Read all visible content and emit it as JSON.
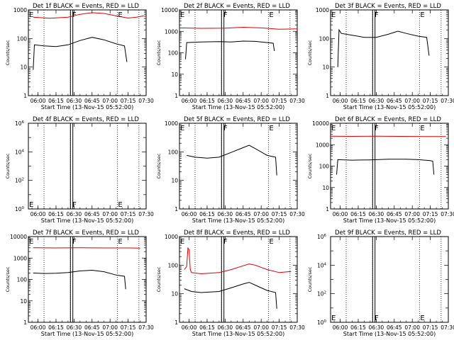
{
  "figure": {
    "background": "#ffffff",
    "colors": {
      "events": "#000000",
      "lld": "#dd0000",
      "frame": "#000000"
    }
  },
  "chart_data": [
    {
      "type": "line",
      "title": "Det 1f BLACK = Events, RED = LLD",
      "xlabel": "Start Time (13-Nov-15 05:52:00)",
      "ylabel": "Counts/sec",
      "ylim": [
        1,
        1000
      ],
      "log_y": true,
      "yticks": [
        {
          "v": 1,
          "label": "1"
        },
        {
          "v": 10,
          "label": "10"
        },
        {
          "v": 100,
          "label": "100"
        },
        {
          "v": 1000,
          "label": "1000"
        }
      ],
      "xlim": [
        "05:52",
        "07:30"
      ],
      "xticks": [
        "06:00",
        "06:15",
        "06:30",
        "06:45",
        "07:00",
        "07:15",
        "07:30"
      ],
      "vlines_dotted": [
        "06:05",
        "06:27",
        "07:06",
        "07:24"
      ],
      "vlines_solid": [
        "06:27",
        "06:29"
      ],
      "markers": [
        {
          "text": "E",
          "x": "05:52"
        },
        {
          "text": "F",
          "x": "06:28"
        },
        {
          "text": "E",
          "x": "07:06"
        }
      ],
      "marker_pos": "top",
      "series": [
        {
          "name": "LLD",
          "color": "#dd0000",
          "x": [
            "05:56",
            "06:10",
            "06:25",
            "06:35",
            "06:45",
            "06:55",
            "07:05",
            "07:15",
            "07:22",
            "07:28"
          ],
          "values": [
            560,
            510,
            560,
            700,
            800,
            750,
            620,
            520,
            560,
            620
          ]
        },
        {
          "name": "Events",
          "color": "#000000",
          "x": [
            "05:56",
            "05:57",
            "06:05",
            "06:15",
            "06:25",
            "06:35",
            "06:45",
            "06:55",
            "07:05",
            "07:12",
            "07:14"
          ],
          "values": [
            8,
            60,
            55,
            52,
            60,
            85,
            110,
            90,
            65,
            55,
            15
          ]
        }
      ]
    },
    {
      "type": "line",
      "title": "Det 2f BLACK = Events, RED = LLD",
      "xlabel": "Start Time (13-Nov-15 05:52:00)",
      "ylabel": "Counts/sec",
      "ylim": [
        1,
        10000
      ],
      "log_y": true,
      "yticks": [
        {
          "v": 1,
          "label": "1"
        },
        {
          "v": 10,
          "label": "10"
        },
        {
          "v": 100,
          "label": "100"
        },
        {
          "v": 1000,
          "label": "1000"
        },
        {
          "v": 10000,
          "label": "10000"
        }
      ],
      "xlim": [
        "05:52",
        "07:30"
      ],
      "xticks": [
        "06:00",
        "06:15",
        "06:30",
        "06:45",
        "07:00",
        "07:15",
        "07:30"
      ],
      "vlines_dotted": [
        "06:05",
        "06:27",
        "07:06",
        "07:24"
      ],
      "vlines_solid": [
        "06:27",
        "06:29"
      ],
      "markers": [
        {
          "text": "E",
          "x": "05:52"
        },
        {
          "text": "F",
          "x": "06:28"
        },
        {
          "text": "E",
          "x": "07:06"
        }
      ],
      "marker_pos": "top",
      "series": [
        {
          "name": "LLD",
          "color": "#dd0000",
          "x": [
            "05:52",
            "06:10",
            "06:30",
            "06:45",
            "07:00",
            "07:15",
            "07:30"
          ],
          "values": [
            1450,
            1380,
            1400,
            1550,
            1450,
            1250,
            1300
          ]
        },
        {
          "name": "Events",
          "color": "#000000",
          "x": [
            "05:57",
            "05:58",
            "06:10",
            "06:25",
            "06:35",
            "06:45",
            "06:55",
            "07:05",
            "07:10",
            "07:11"
          ],
          "values": [
            50,
            300,
            320,
            330,
            320,
            350,
            340,
            300,
            280,
            120
          ]
        }
      ]
    },
    {
      "type": "line",
      "title": "Det 3f BLACK = Events, RED = LLD",
      "xlabel": "Start Time (13-Nov-15 05:52:00)",
      "ylabel": "Counts/sec",
      "ylim": [
        1,
        1000
      ],
      "log_y": true,
      "yticks": [
        {
          "v": 1,
          "label": "1"
        },
        {
          "v": 10,
          "label": "10"
        },
        {
          "v": 100,
          "label": "100"
        },
        {
          "v": 1000,
          "label": "1000"
        }
      ],
      "xlim": [
        "05:52",
        "07:30"
      ],
      "xticks": [
        "06:00",
        "06:15",
        "06:30",
        "06:45",
        "07:00",
        "07:15",
        "07:30"
      ],
      "vlines_dotted": [
        "06:05",
        "06:27",
        "07:06",
        "07:24"
      ],
      "vlines_solid": [
        "06:27",
        "06:29"
      ],
      "markers": [
        {
          "text": "E",
          "x": "05:52"
        },
        {
          "text": "F",
          "x": "06:28"
        },
        {
          "text": "E",
          "x": "07:06"
        }
      ],
      "marker_pos": "top",
      "series": [
        {
          "name": "Events",
          "color": "#000000",
          "x": [
            "05:58",
            "05:59",
            "06:01",
            "06:10",
            "06:20",
            "06:30",
            "06:40",
            "06:48",
            "06:55",
            "07:05",
            "07:12",
            "07:14"
          ],
          "values": [
            10,
            200,
            150,
            130,
            110,
            110,
            140,
            180,
            150,
            120,
            110,
            25
          ]
        }
      ]
    },
    {
      "type": "line",
      "title": "Det 4f BLACK = Events, RED = LLD",
      "xlabel": "Start Time (13-Nov-15 05:52:00)",
      "ylabel": "Counts/sec",
      "ylim": [
        1,
        1000000
      ],
      "log_y": true,
      "sup_ticks": true,
      "yticks": [
        {
          "v": 1,
          "label": "10",
          "sup": "0"
        },
        {
          "v": 100,
          "label": "10",
          "sup": "2"
        },
        {
          "v": 10000,
          "label": "10",
          "sup": "4"
        },
        {
          "v": 1000000,
          "label": "10",
          "sup": "6"
        }
      ],
      "xlim": [
        "05:52",
        "07:30"
      ],
      "xticks": [
        "06:00",
        "06:15",
        "06:30",
        "06:45",
        "07:00",
        "07:15",
        "07:30"
      ],
      "vlines_dotted": [
        "06:05",
        "06:27",
        "07:06",
        "07:24"
      ],
      "vlines_solid": [
        "06:27",
        "06:29"
      ],
      "markers": [
        {
          "text": "E",
          "x": "05:52"
        },
        {
          "text": "F",
          "x": "06:28"
        },
        {
          "text": "E",
          "x": "07:06"
        }
      ],
      "marker_pos": "bottom",
      "series": []
    },
    {
      "type": "line",
      "title": "Det 5f BLACK = Events, RED = LLD",
      "xlabel": "Start Time (13-Nov-15 05:52:00)",
      "ylabel": "Counts/sec",
      "ylim": [
        1,
        1000
      ],
      "log_y": true,
      "yticks": [
        {
          "v": 1,
          "label": "1"
        },
        {
          "v": 10,
          "label": "10"
        },
        {
          "v": 100,
          "label": "100"
        },
        {
          "v": 1000,
          "label": "1000"
        }
      ],
      "xlim": [
        "05:52",
        "07:30"
      ],
      "xticks": [
        "06:00",
        "06:15",
        "06:30",
        "06:45",
        "07:00",
        "07:15",
        "07:30"
      ],
      "vlines_dotted": [
        "06:05",
        "06:27",
        "07:06",
        "07:24"
      ],
      "vlines_solid": [
        "06:27",
        "06:29"
      ],
      "markers": [
        {
          "text": "E",
          "x": "05:52"
        },
        {
          "text": "F",
          "x": "06:28"
        },
        {
          "text": "E",
          "x": "07:06"
        }
      ],
      "marker_pos": "top",
      "series": [
        {
          "name": "Events",
          "color": "#000000",
          "x": [
            "05:58",
            "06:05",
            "06:15",
            "06:25",
            "06:35",
            "06:45",
            "06:50",
            "06:55",
            "07:05",
            "07:12",
            "07:13"
          ],
          "values": [
            75,
            65,
            60,
            65,
            95,
            140,
            170,
            130,
            75,
            65,
            15
          ]
        }
      ]
    },
    {
      "type": "line",
      "title": "Det 6f BLACK = Events, RED = LLD",
      "xlabel": "Start Time (13-Nov-15 05:52:00)",
      "ylabel": "Counts/sec",
      "ylim": [
        1,
        10000
      ],
      "log_y": true,
      "yticks": [
        {
          "v": 1,
          "label": "1"
        },
        {
          "v": 10,
          "label": "10"
        },
        {
          "v": 100,
          "label": "100"
        },
        {
          "v": 1000,
          "label": "1000"
        },
        {
          "v": 10000,
          "label": "10000"
        }
      ],
      "xlim": [
        "05:52",
        "07:30"
      ],
      "xticks": [
        "06:00",
        "06:15",
        "06:30",
        "06:45",
        "07:00",
        "07:15",
        "07:30"
      ],
      "vlines_dotted": [
        "06:05",
        "06:27",
        "07:06",
        "07:24"
      ],
      "vlines_solid": [
        "06:27",
        "06:29"
      ],
      "markers": [
        {
          "text": "E",
          "x": "05:52"
        },
        {
          "text": "F",
          "x": "06:28"
        },
        {
          "text": "E",
          "x": "07:06"
        }
      ],
      "marker_pos": "top",
      "series": [
        {
          "name": "LLD",
          "color": "#dd0000",
          "x": [
            "05:52",
            "06:10",
            "06:30",
            "06:50",
            "07:10",
            "07:28"
          ],
          "values": [
            2500,
            2450,
            2500,
            2450,
            2400,
            2400
          ]
        },
        {
          "name": "Events",
          "color": "#000000",
          "x": [
            "05:57",
            "05:58",
            "06:10",
            "06:25",
            "06:40",
            "06:55",
            "07:05",
            "07:15",
            "07:17",
            "07:18"
          ],
          "values": [
            40,
            200,
            190,
            195,
            210,
            210,
            200,
            180,
            170,
            40
          ]
        }
      ]
    },
    {
      "type": "line",
      "title": "Det 7f BLACK = Events, RED = LLD",
      "xlabel": "Start Time (13-Nov-15 05:52:00)",
      "ylabel": "Counts/sec",
      "ylim": [
        1,
        10000
      ],
      "log_y": true,
      "yticks": [
        {
          "v": 1,
          "label": "1"
        },
        {
          "v": 10,
          "label": "10"
        },
        {
          "v": 100,
          "label": "100"
        },
        {
          "v": 1000,
          "label": "1000"
        },
        {
          "v": 10000,
          "label": "10000"
        }
      ],
      "xlim": [
        "05:52",
        "07:30"
      ],
      "xticks": [
        "06:00",
        "06:15",
        "06:30",
        "06:45",
        "07:00",
        "07:15",
        "07:30"
      ],
      "vlines_dotted": [
        "06:05",
        "06:27",
        "07:06",
        "07:24"
      ],
      "vlines_solid": [
        "06:27",
        "06:29"
      ],
      "markers": [
        {
          "text": "E",
          "x": "05:52"
        },
        {
          "text": "F",
          "x": "06:28"
        },
        {
          "text": "E",
          "x": "07:06"
        }
      ],
      "marker_pos": "top",
      "series": [
        {
          "name": "LLD",
          "color": "#dd0000",
          "x": [
            "05:56",
            "06:15",
            "06:35",
            "06:55",
            "07:15",
            "07:25"
          ],
          "values": [
            3000,
            2950,
            3000,
            2950,
            2950,
            2900
          ]
        },
        {
          "name": "Events",
          "color": "#000000",
          "x": [
            "05:56",
            "06:05",
            "06:15",
            "06:25",
            "06:35",
            "06:45",
            "06:55",
            "07:05",
            "07:12",
            "07:13"
          ],
          "values": [
            200,
            190,
            195,
            210,
            250,
            270,
            230,
            160,
            140,
            35
          ]
        }
      ]
    },
    {
      "type": "line",
      "title": "Det 8f BLACK = Events, RED = LLD",
      "xlabel": "Start Time (13-Nov-15 05:52:00)",
      "ylabel": "Counts/sec",
      "ylim": [
        1,
        1000
      ],
      "log_y": true,
      "yticks": [
        {
          "v": 1,
          "label": "1"
        },
        {
          "v": 10,
          "label": "10"
        },
        {
          "v": 100,
          "label": "100"
        },
        {
          "v": 1000,
          "label": "1000"
        }
      ],
      "xlim": [
        "05:52",
        "07:30"
      ],
      "xticks": [
        "06:00",
        "06:15",
        "06:30",
        "06:45",
        "07:00",
        "07:15",
        "07:30"
      ],
      "vlines_dotted": [
        "06:05",
        "06:27",
        "07:06",
        "07:24"
      ],
      "vlines_solid": [
        "06:27",
        "06:29"
      ],
      "markers": [
        {
          "text": "E",
          "x": "05:52"
        },
        {
          "text": "F",
          "x": "06:28"
        },
        {
          "text": "E",
          "x": "07:06"
        }
      ],
      "marker_pos": "top",
      "series": [
        {
          "name": "LLD",
          "color": "#dd0000",
          "x": [
            "05:56",
            "05:58",
            "05:59",
            "06:00",
            "06:01",
            "06:02",
            "06:10",
            "06:25",
            "06:35",
            "06:45",
            "06:50",
            "06:55",
            "07:05",
            "07:15",
            "07:25"
          ],
          "values": [
            70,
            90,
            400,
            350,
            70,
            55,
            50,
            55,
            70,
            95,
            110,
            100,
            70,
            55,
            60
          ]
        },
        {
          "name": "Events",
          "color": "#000000",
          "x": [
            "05:56",
            "06:02",
            "06:10",
            "06:25",
            "06:35",
            "06:45",
            "06:50",
            "06:55",
            "07:05",
            "07:12",
            "07:13"
          ],
          "values": [
            15,
            12,
            11,
            12,
            16,
            22,
            25,
            20,
            13,
            11,
            3
          ]
        }
      ]
    },
    {
      "type": "line",
      "title": "Det 9f BLACK = Events, RED = LLD",
      "xlabel": "Start Time (13-Nov-15 05:52:00)",
      "ylabel": "Counts/sec",
      "ylim": [
        1,
        1000000
      ],
      "log_y": true,
      "sup_ticks": true,
      "yticks": [
        {
          "v": 1,
          "label": "10",
          "sup": "0"
        },
        {
          "v": 100,
          "label": "10",
          "sup": "2"
        },
        {
          "v": 10000,
          "label": "10",
          "sup": "4"
        },
        {
          "v": 1000000,
          "label": "10",
          "sup": "6"
        }
      ],
      "xlim": [
        "05:52",
        "07:30"
      ],
      "xticks": [
        "06:00",
        "06:15",
        "06:30",
        "06:45",
        "07:00",
        "07:15",
        "07:30"
      ],
      "vlines_dotted": [
        "06:05",
        "06:27",
        "07:06",
        "07:24"
      ],
      "vlines_solid": [
        "06:27",
        "06:29"
      ],
      "markers": [
        {
          "text": "E",
          "x": "05:52"
        },
        {
          "text": "F",
          "x": "06:28"
        },
        {
          "text": "E",
          "x": "07:06"
        }
      ],
      "marker_pos": "bottom",
      "series": []
    }
  ]
}
